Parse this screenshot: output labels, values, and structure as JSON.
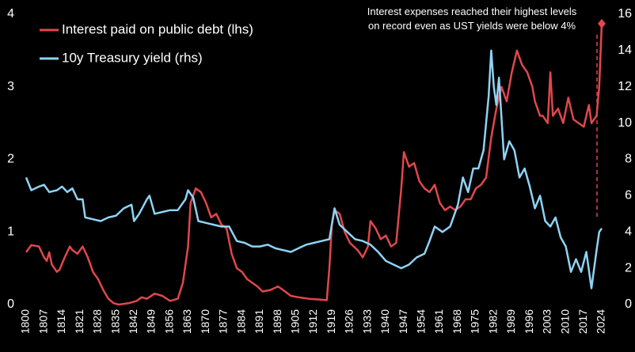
{
  "chart_data": {
    "type": "line",
    "annotation": "Interest expenses reached their highest levels on record even as UST yields were below 4%",
    "xlim": [
      1800,
      2024
    ],
    "xticks": [
      1800,
      1807,
      1814,
      1821,
      1828,
      1835,
      1842,
      1849,
      1856,
      1863,
      1870,
      1877,
      1884,
      1891,
      1898,
      1905,
      1912,
      1919,
      1926,
      1933,
      1940,
      1947,
      1954,
      1961,
      1968,
      1975,
      1982,
      1989,
      1996,
      2003,
      2010,
      2017,
      2024
    ],
    "ylim": [
      0,
      4
    ],
    "yticks": [
      0,
      1,
      2,
      3,
      4
    ],
    "y2lim": [
      0,
      16
    ],
    "y2ticks": [
      0,
      2,
      4,
      6,
      8,
      10,
      12,
      14,
      16
    ],
    "legend": "upper left",
    "series": [
      {
        "name": "Interest paid on public debt (lhs)",
        "color": "#e0474c",
        "axis": "y",
        "x": [
          1800,
          1802,
          1805,
          1807,
          1808,
          1809,
          1810,
          1812,
          1813,
          1815,
          1817,
          1818,
          1820,
          1822,
          1824,
          1826,
          1828,
          1830,
          1832,
          1834,
          1836,
          1840,
          1843,
          1845,
          1847,
          1850,
          1853,
          1856,
          1859,
          1861,
          1863,
          1864,
          1866,
          1868,
          1870,
          1872,
          1874,
          1876,
          1878,
          1880,
          1882,
          1884,
          1886,
          1888,
          1890,
          1892,
          1895,
          1898,
          1900,
          1903,
          1906,
          1910,
          1914,
          1917,
          1918,
          1919,
          1920,
          1922,
          1924,
          1926,
          1929,
          1931,
          1933,
          1934,
          1936,
          1938,
          1940,
          1942,
          1944,
          1946,
          1947,
          1949,
          1951,
          1953,
          1955,
          1957,
          1959,
          1961,
          1963,
          1965,
          1967,
          1969,
          1971,
          1973,
          1975,
          1977,
          1979,
          1981,
          1983,
          1985,
          1987,
          1989,
          1991,
          1993,
          1995,
          1997,
          1998,
          2000,
          2001,
          2003,
          2004,
          2005,
          2007,
          2009,
          2011,
          2013,
          2015,
          2017,
          2019,
          2020,
          2022,
          2023,
          2024
        ],
        "values": [
          0.72,
          0.82,
          0.8,
          0.65,
          0.6,
          0.72,
          0.55,
          0.45,
          0.48,
          0.65,
          0.8,
          0.75,
          0.7,
          0.8,
          0.65,
          0.45,
          0.35,
          0.2,
          0.08,
          0.02,
          0.0,
          0.02,
          0.05,
          0.1,
          0.08,
          0.15,
          0.12,
          0.05,
          0.08,
          0.3,
          0.8,
          1.4,
          1.6,
          1.55,
          1.4,
          1.2,
          1.25,
          1.1,
          1.05,
          0.7,
          0.5,
          0.45,
          0.35,
          0.3,
          0.25,
          0.18,
          0.2,
          0.25,
          0.2,
          0.12,
          0.1,
          0.08,
          0.07,
          0.06,
          0.5,
          1.1,
          1.3,
          1.25,
          1.0,
          0.85,
          0.75,
          0.65,
          0.8,
          1.15,
          1.05,
          0.9,
          0.95,
          0.8,
          0.85,
          1.6,
          2.1,
          1.9,
          1.95,
          1.7,
          1.6,
          1.55,
          1.65,
          1.4,
          1.3,
          1.35,
          1.3,
          1.35,
          1.45,
          1.45,
          1.6,
          1.65,
          1.75,
          2.3,
          2.7,
          3.0,
          2.8,
          3.2,
          3.5,
          3.3,
          3.2,
          3.0,
          2.8,
          2.6,
          2.6,
          2.5,
          3.2,
          2.6,
          2.7,
          2.5,
          2.85,
          2.55,
          2.5,
          2.45,
          2.75,
          2.5,
          2.6,
          3.0,
          3.87
        ]
      },
      {
        "name": "10y Treasury yield (rhs)",
        "color": "#8fd3f5",
        "axis": "y2",
        "x": [
          1800,
          1802,
          1805,
          1807,
          1809,
          1812,
          1814,
          1816,
          1818,
          1820,
          1822,
          1823,
          1826,
          1829,
          1832,
          1835,
          1838,
          1841,
          1842,
          1844,
          1847,
          1848,
          1850,
          1853,
          1856,
          1859,
          1862,
          1863,
          1865,
          1867,
          1870,
          1873,
          1876,
          1879,
          1882,
          1885,
          1888,
          1891,
          1894,
          1897,
          1900,
          1903,
          1906,
          1909,
          1912,
          1915,
          1918,
          1920,
          1922,
          1925,
          1928,
          1931,
          1934,
          1937,
          1940,
          1943,
          1946,
          1949,
          1952,
          1955,
          1957,
          1959,
          1962,
          1965,
          1968,
          1970,
          1972,
          1974,
          1976,
          1978,
          1980,
          1981,
          1982,
          1983,
          1984,
          1986,
          1988,
          1990,
          1992,
          1994,
          1996,
          1998,
          2000,
          2002,
          2004,
          2006,
          2008,
          2010,
          2012,
          2014,
          2016,
          2018,
          2020,
          2022,
          2023,
          2024
        ],
        "values": [
          7.0,
          6.3,
          6.5,
          6.6,
          6.2,
          6.3,
          6.5,
          6.2,
          6.4,
          5.8,
          5.8,
          4.8,
          4.7,
          4.6,
          4.8,
          4.9,
          5.3,
          5.5,
          4.6,
          5.0,
          5.8,
          6.0,
          5.0,
          5.1,
          5.2,
          5.2,
          5.8,
          6.3,
          5.9,
          4.6,
          4.5,
          4.4,
          4.3,
          4.3,
          3.5,
          3.4,
          3.2,
          3.2,
          3.3,
          3.1,
          3.0,
          2.9,
          3.1,
          3.3,
          3.4,
          3.5,
          3.6,
          5.3,
          4.4,
          4.0,
          3.6,
          3.5,
          3.3,
          2.9,
          2.4,
          2.2,
          2.0,
          2.2,
          2.6,
          2.8,
          3.5,
          4.3,
          4.0,
          4.3,
          5.5,
          7.0,
          6.2,
          7.5,
          7.5,
          8.5,
          11.5,
          14.0,
          12.0,
          11.0,
          12.5,
          8.0,
          9.0,
          8.5,
          7.0,
          7.5,
          6.5,
          5.3,
          6.0,
          4.6,
          4.3,
          4.8,
          3.7,
          3.2,
          1.8,
          2.5,
          1.8,
          2.9,
          0.9,
          3.0,
          4.0,
          4.2
        ]
      }
    ]
  }
}
